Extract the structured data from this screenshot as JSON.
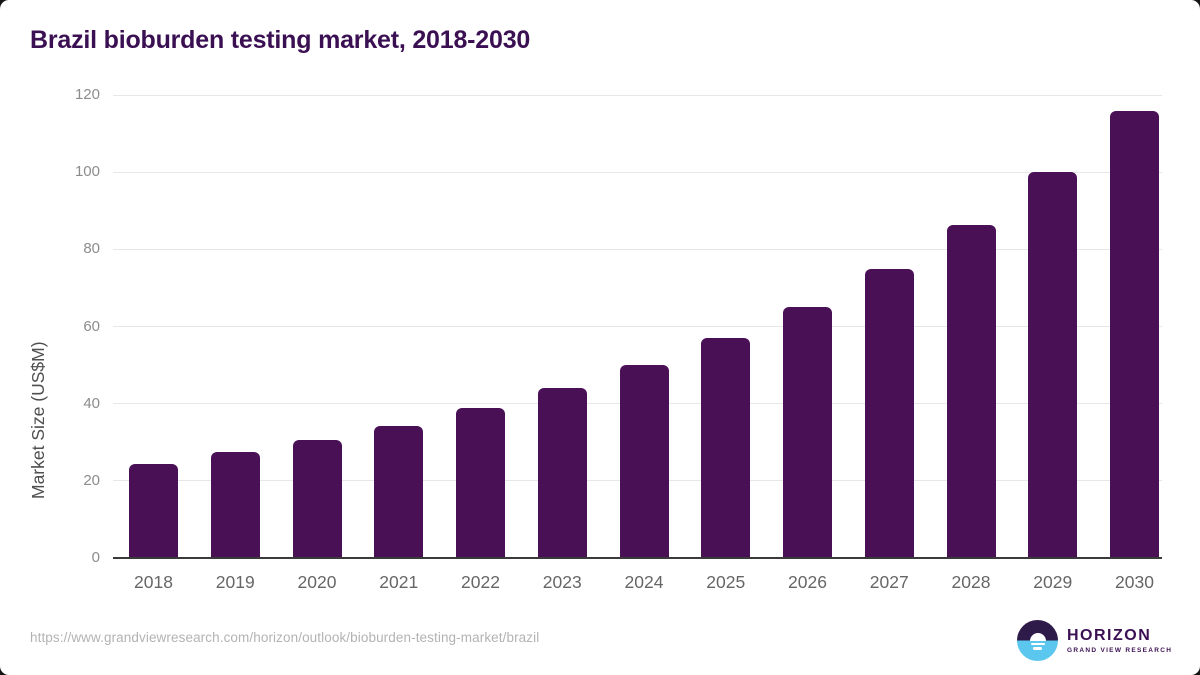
{
  "page": {
    "title": "Brazil bioburden testing market, 2018-2030",
    "source_url": "https://www.grandviewresearch.com/horizon/outlook/bioburden-testing-market/brazil"
  },
  "logo": {
    "name": "HORIZON",
    "subtitle": "GRAND VIEW RESEARCH"
  },
  "colors": {
    "bar": "#4a1056",
    "title_text": "#3b1053",
    "grid": "#e7e7e7",
    "axis_line": "#3a3a3a",
    "tick_text": "#8c8c8c",
    "xlabel_text": "#666666",
    "ylabel_text": "#4f4f4f",
    "url_text": "#b3b3b3",
    "logo_purple": "#2f1b4a",
    "logo_blue": "#5bc6ee",
    "card_bg": "#ffffff",
    "outside_bg": "#141414"
  },
  "chart_data": {
    "type": "bar",
    "title": "Brazil bioburden testing market, 2018-2030",
    "xlabel": "",
    "ylabel": "Market Size (US$M)",
    "categories": [
      "2018",
      "2019",
      "2020",
      "2021",
      "2022",
      "2023",
      "2024",
      "2025",
      "2026",
      "2027",
      "2028",
      "2029",
      "2030"
    ],
    "values": [
      24.2,
      27.1,
      30.3,
      33.9,
      38.6,
      43.7,
      49.8,
      56.8,
      64.7,
      74.6,
      86.0,
      99.7,
      115.7
    ],
    "ylim": [
      0,
      120
    ],
    "yticks": [
      0,
      20,
      40,
      60,
      80,
      100,
      120
    ],
    "grid": "horizontal",
    "legend": "none",
    "bar_color": "#4a1056"
  }
}
